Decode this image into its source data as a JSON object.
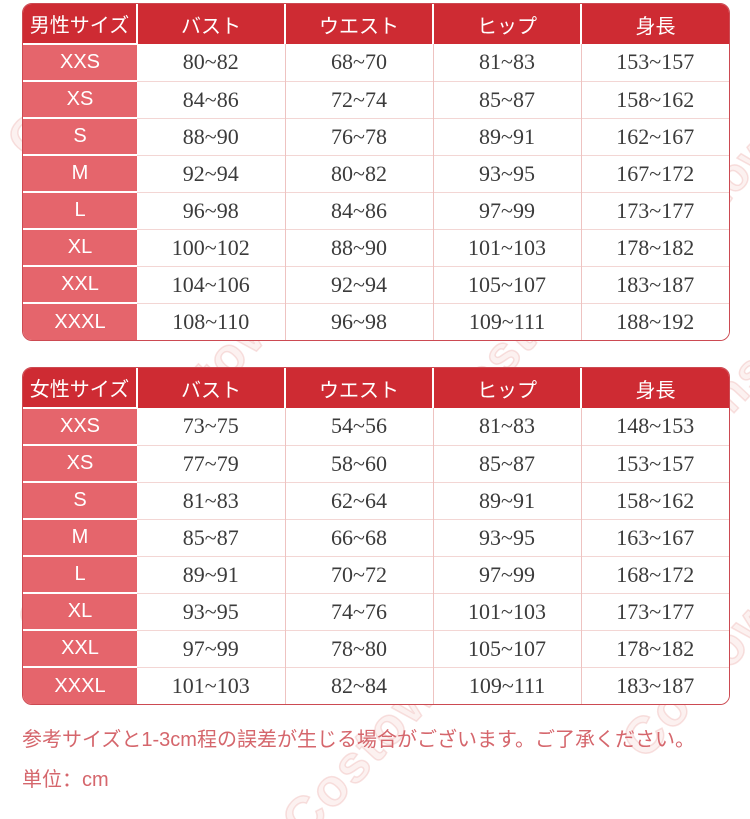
{
  "colors": {
    "header_bg": "#ce2b33",
    "size_column_bg": "#e5656c",
    "data_text": "#3b3b3b",
    "note_text": "#d5666c",
    "column_divider": "#eec3c1",
    "row_divider": "#f3d6d4",
    "outer_border": "#cc4a52",
    "watermark": "#f0bcba"
  },
  "chart_data": [
    {
      "type": "table",
      "title": "男性サイズ",
      "columns": [
        "男性サイズ",
        "バスト",
        "ウエスト",
        "ヒップ",
        "身長"
      ],
      "rows": [
        [
          "XXS",
          "80~82",
          "68~70",
          "81~83",
          "153~157"
        ],
        [
          "XS",
          "84~86",
          "72~74",
          "85~87",
          "158~162"
        ],
        [
          "S",
          "88~90",
          "76~78",
          "89~91",
          "162~167"
        ],
        [
          "M",
          "92~94",
          "80~82",
          "93~95",
          "167~172"
        ],
        [
          "L",
          "96~98",
          "84~86",
          "97~99",
          "173~177"
        ],
        [
          "XL",
          "100~102",
          "88~90",
          "101~103",
          "178~182"
        ],
        [
          "XXL",
          "104~106",
          "92~94",
          "105~107",
          "183~187"
        ],
        [
          "XXXL",
          "108~110",
          "96~98",
          "109~111",
          "188~192"
        ]
      ]
    },
    {
      "type": "table",
      "title": "女性サイズ",
      "columns": [
        "女性サイズ",
        "バスト",
        "ウエスト",
        "ヒップ",
        "身長"
      ],
      "rows": [
        [
          "XXS",
          "73~75",
          "54~56",
          "81~83",
          "148~153"
        ],
        [
          "XS",
          "77~79",
          "58~60",
          "85~87",
          "153~157"
        ],
        [
          "S",
          "81~83",
          "62~64",
          "89~91",
          "158~162"
        ],
        [
          "M",
          "85~87",
          "66~68",
          "93~95",
          "163~167"
        ],
        [
          "L",
          "89~91",
          "70~72",
          "97~99",
          "168~172"
        ],
        [
          "XL",
          "93~95",
          "74~76",
          "101~103",
          "173~177"
        ],
        [
          "XXL",
          "97~99",
          "78~80",
          "105~107",
          "178~182"
        ],
        [
          "XXXL",
          "101~103",
          "82~84",
          "109~111",
          "183~187"
        ]
      ]
    }
  ],
  "notes": {
    "line1": "参考サイズと1-3cm程の誤差が生じる場合がございます。ご了承ください。",
    "line2": "単位：cm"
  },
  "watermark": {
    "text": "Costowns"
  }
}
